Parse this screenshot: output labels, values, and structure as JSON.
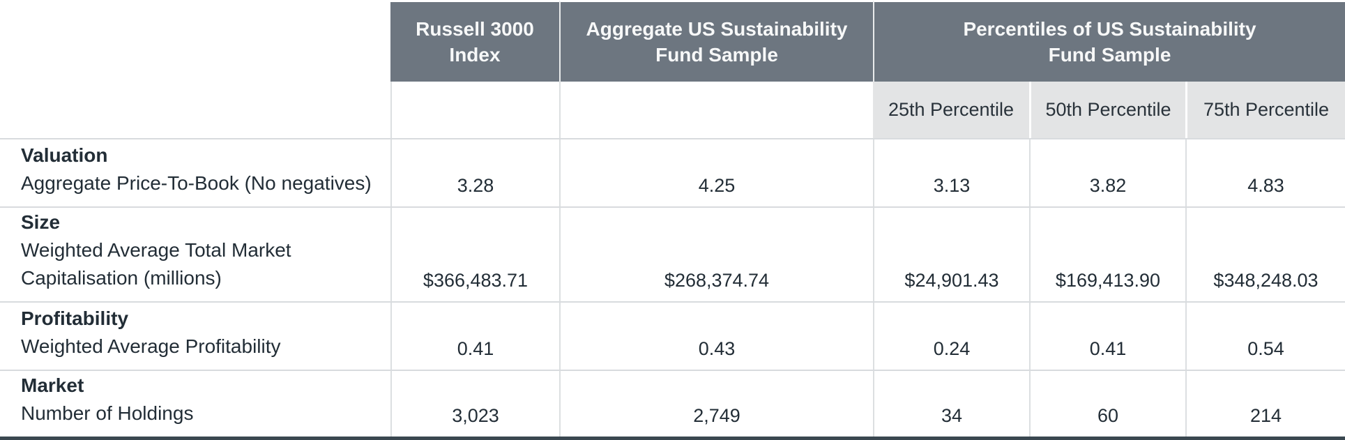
{
  "colors": {
    "header_background": "#6d7680",
    "header_text": "#f7f8f8",
    "subheader_background": "#e3e4e5",
    "body_text": "#222d36",
    "gridline": "#d8dbde",
    "bottom_border": "#3a4750"
  },
  "chart_data": {
    "type": "table",
    "header": {
      "russell": {
        "line1": "Russell 3000",
        "line2": "Index"
      },
      "aggregate": {
        "line1": "Aggregate US Sustainability",
        "line2": "Fund Sample"
      },
      "percentiles": {
        "line1": "Percentiles of US Sustainability",
        "line2": "Fund Sample"
      },
      "subheaders": [
        "25th Percentile",
        "50th Percentile",
        "75th Percentile"
      ]
    },
    "columns": [
      "Russell 3000 Index",
      "Aggregate US Sustainability Fund Sample",
      "25th Percentile",
      "50th Percentile",
      "75th Percentile"
    ],
    "rows": [
      {
        "category": "Valuation",
        "metric": "Aggregate Price-To-Book (No negatives)",
        "values": [
          "3.28",
          "4.25",
          "3.13",
          "3.82",
          "4.83"
        ]
      },
      {
        "category": "Size",
        "metric": "Weighted Average Total Market Capitalisation (millions)",
        "values": [
          "$366,483.71",
          "$268,374.74",
          "$24,901.43",
          "$169,413.90",
          "$348,248.03"
        ]
      },
      {
        "category": "Profitability",
        "metric": "Weighted Average Profitability",
        "values": [
          "0.41",
          "0.43",
          "0.24",
          "0.41",
          "0.54"
        ]
      },
      {
        "category": "Market",
        "metric": "Number of Holdings",
        "values": [
          "3,023",
          "2,749",
          "34",
          "60",
          "214"
        ]
      }
    ]
  }
}
